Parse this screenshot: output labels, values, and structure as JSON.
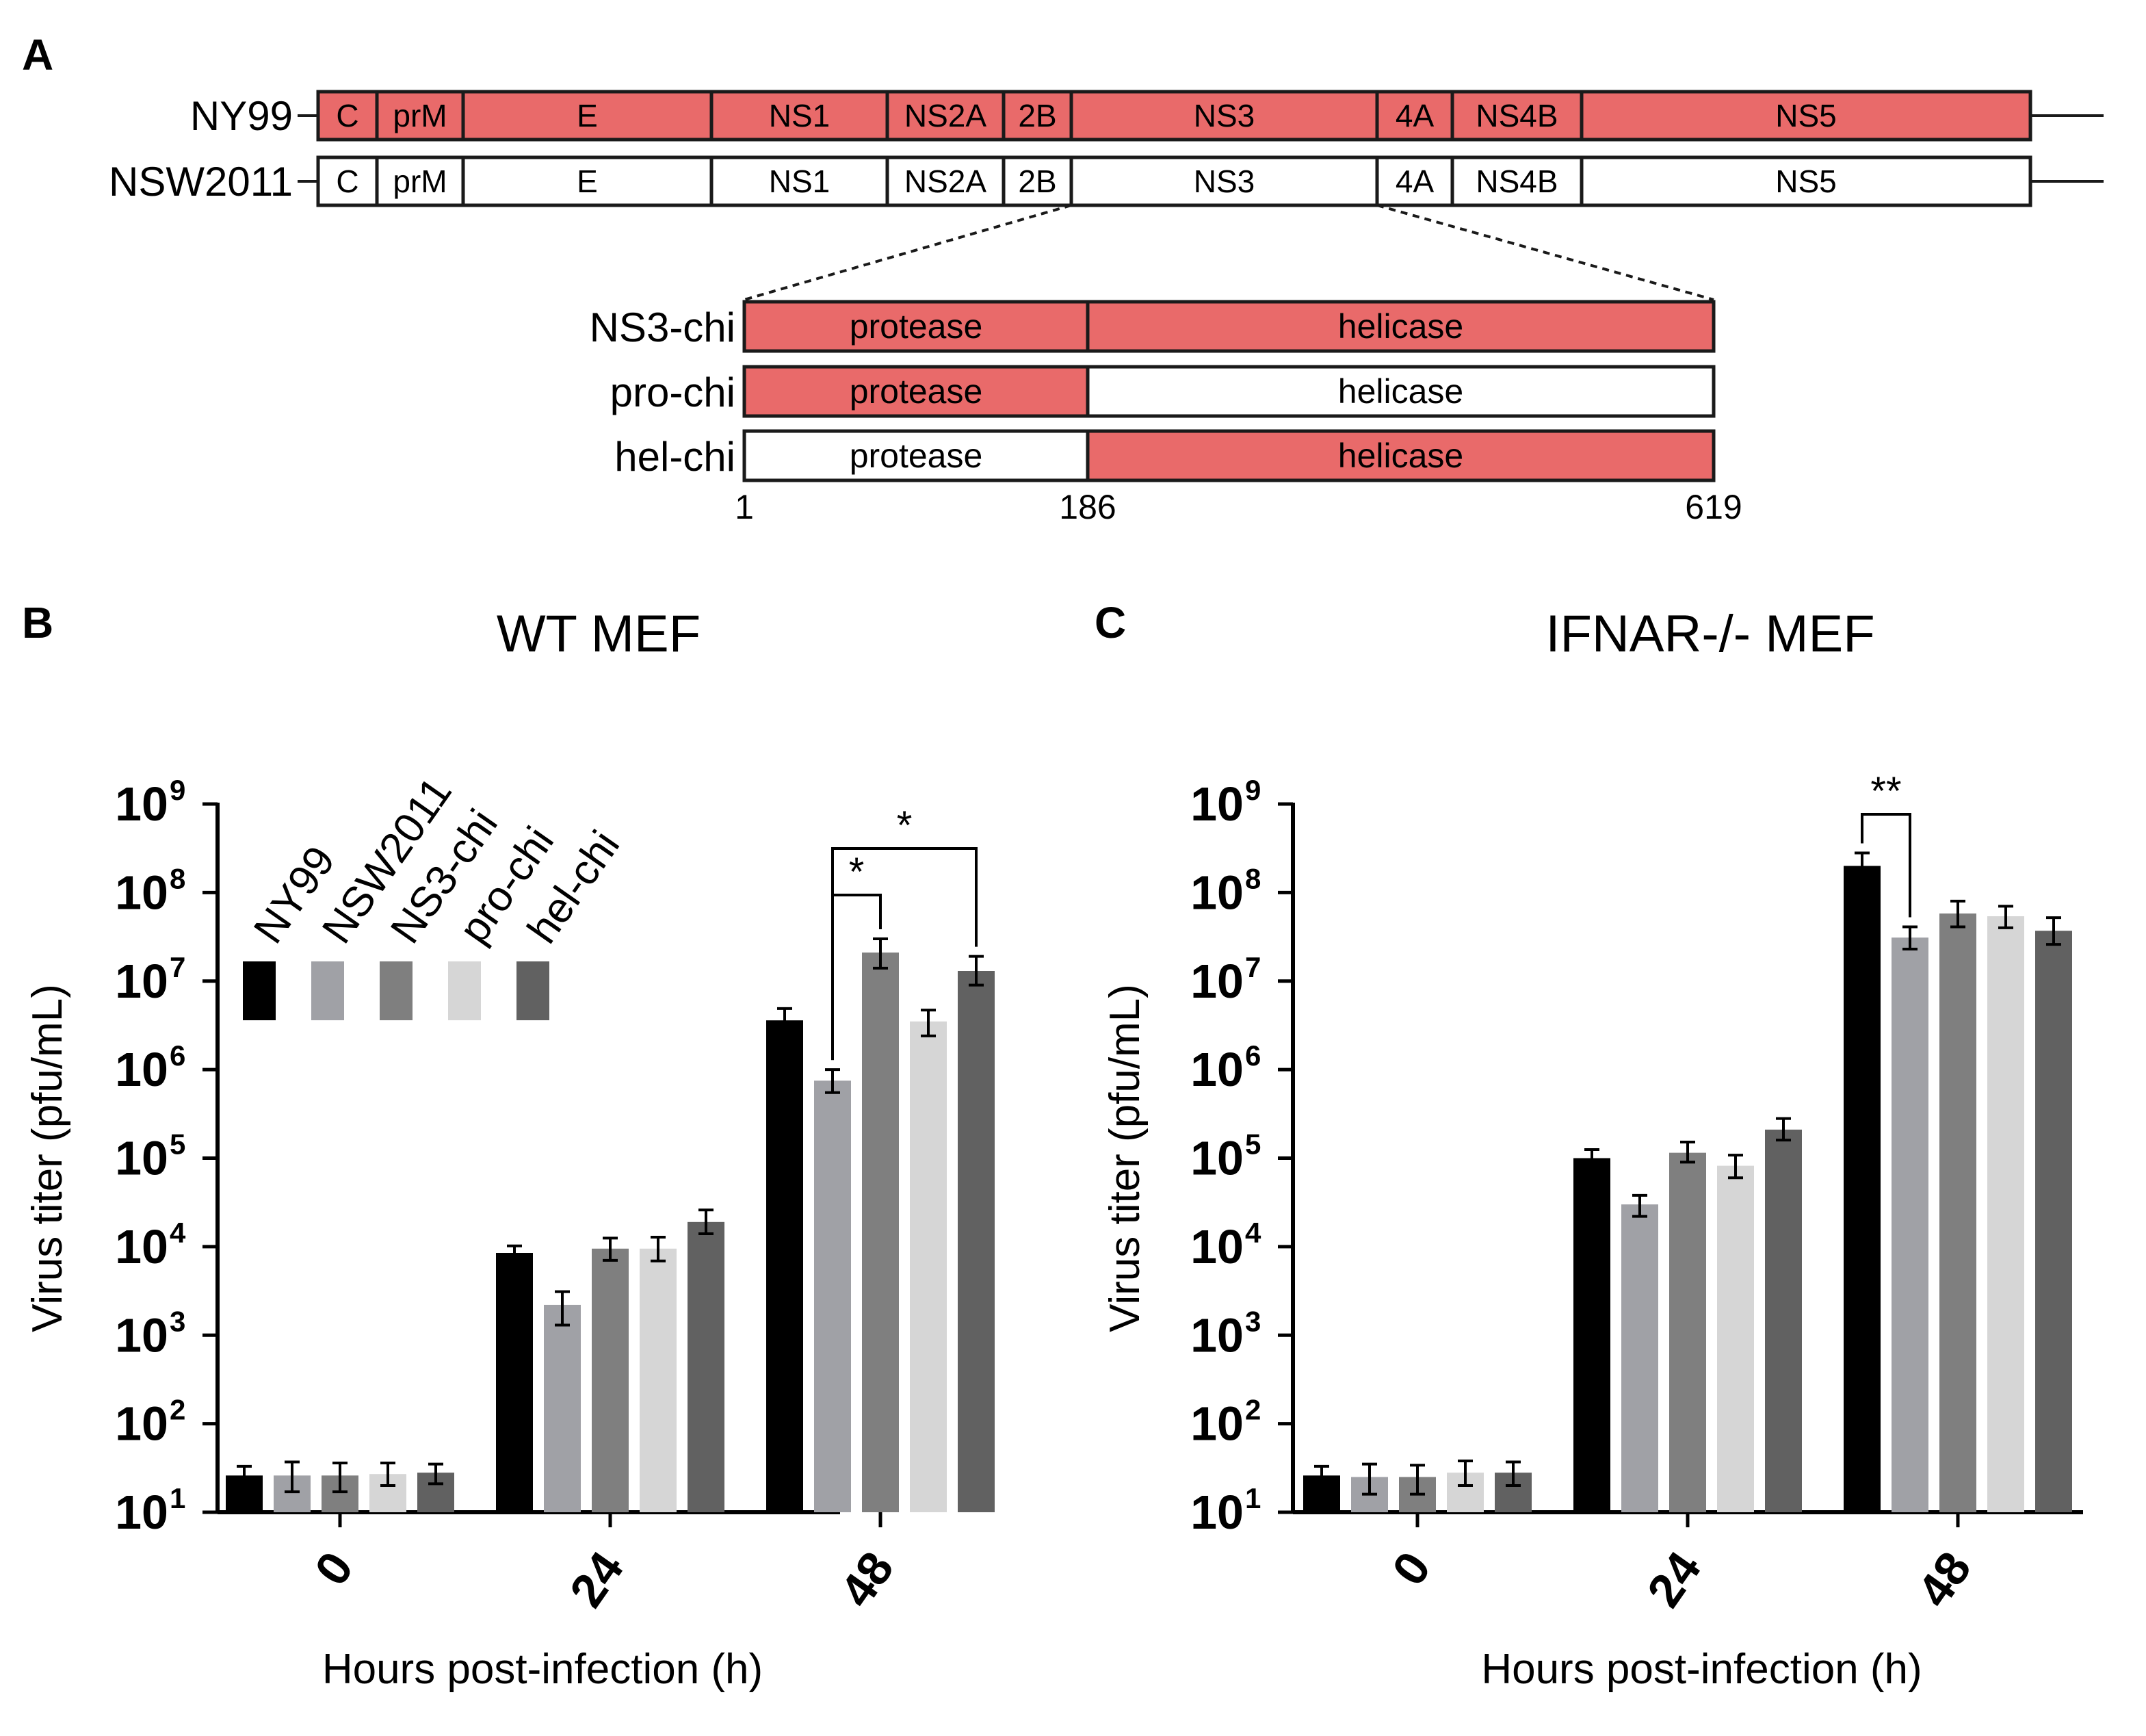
{
  "colors": {
    "ny99_fill": "#e96a6a",
    "nsw_fill": "#ffffff",
    "outline": "#1a1a1a"
  },
  "panel_a": {
    "letter": "A",
    "genomes": [
      {
        "name": "NY99",
        "filled": true
      },
      {
        "name": "NSW2011",
        "filled": false
      }
    ],
    "segments": [
      "C",
      "prM",
      "E",
      "NS1",
      "NS2A",
      "2B",
      "NS3",
      "4A",
      "NS4B",
      "NS5"
    ],
    "chimeras": [
      {
        "name": "NS3-chi",
        "protease_filled": true,
        "helicase_filled": true
      },
      {
        "name": "pro-chi",
        "protease_filled": true,
        "helicase_filled": false
      },
      {
        "name": "hel-chi",
        "protease_filled": false,
        "helicase_filled": true
      }
    ],
    "domain_labels": {
      "protease": "protease",
      "helicase": "helicase"
    },
    "positions": [
      "1",
      "186",
      "619"
    ]
  },
  "chart_data": [
    {
      "type": "bar",
      "panel": "B",
      "title": "WT MEF",
      "xlabel": "Hours post-infection (h)",
      "ylabel": "Virus titer (pfu/mL)",
      "yscale": "log10",
      "ylim": [
        10,
        1000000000
      ],
      "ytick_exponents": [
        1,
        2,
        3,
        4,
        5,
        6,
        7,
        8,
        9
      ],
      "categories": [
        "0",
        "24",
        "48"
      ],
      "series": [
        {
          "name": "NY99",
          "color": "#000000",
          "values": [
            26,
            8500,
            3600000
          ],
          "err_low": [
            20,
            7000,
            2700000
          ],
          "err_high": [
            33,
            10200,
            4900000
          ]
        },
        {
          "name": "NSW2011",
          "color": "#a0a1a6",
          "values": [
            26,
            2200,
            750000
          ],
          "err_low": [
            17,
            1300,
            550000
          ],
          "err_high": [
            37,
            3100,
            1000000
          ]
        },
        {
          "name": "NS3-chi",
          "color": "#7f7f7f",
          "values": [
            26,
            9500,
            21000000
          ],
          "err_low": [
            17,
            7000,
            14000000
          ],
          "err_high": [
            36,
            12500,
            30000000
          ]
        },
        {
          "name": "pro-chi",
          "color": "#d6d6d6",
          "values": [
            27,
            9500,
            3500000
          ],
          "err_low": [
            20,
            6900,
            2400000
          ],
          "err_high": [
            36,
            12800,
            4700000
          ]
        },
        {
          "name": "hel-chi",
          "color": "#616161",
          "values": [
            28,
            19000,
            13000000
          ],
          "err_low": [
            21,
            14000,
            9000000
          ],
          "err_high": [
            35,
            26000,
            19000000
          ]
        }
      ],
      "legend": [
        "NY99",
        "NSW2011",
        "NS3-chi",
        "pro-chi",
        "hel-chi"
      ],
      "significance": [
        {
          "category": "48",
          "from": "NSW2011",
          "to": "NS3-chi",
          "label": "*"
        },
        {
          "category": "48",
          "from": "NSW2011",
          "to": "hel-chi",
          "label": "*"
        }
      ]
    },
    {
      "type": "bar",
      "panel": "C",
      "title": "IFNAR-/- MEF",
      "xlabel": "Hours post-infection (h)",
      "ylabel": "Virus titer (pfu/mL)",
      "yscale": "log10",
      "ylim": [
        10,
        1000000000
      ],
      "ytick_exponents": [
        1,
        2,
        3,
        4,
        5,
        6,
        7,
        8,
        9
      ],
      "categories": [
        "0",
        "24",
        "48"
      ],
      "series": [
        {
          "name": "NY99",
          "color": "#000000",
          "values": [
            26,
            100000,
            200000000
          ],
          "err_low": [
            20,
            85000,
            160000000
          ],
          "err_high": [
            33,
            125000,
            280000000
          ]
        },
        {
          "name": "NSW2011",
          "color": "#a0a1a6",
          "values": [
            25,
            30000,
            31000000
          ],
          "err_low": [
            16,
            22000,
            23000000
          ],
          "err_high": [
            35,
            38000,
            41000000
          ]
        },
        {
          "name": "NS3-chi",
          "color": "#7f7f7f",
          "values": [
            25,
            115000,
            58000000
          ],
          "err_low": [
            16,
            90000,
            41000000
          ],
          "err_high": [
            34,
            152000,
            80000000
          ]
        },
        {
          "name": "pro-chi",
          "color": "#d6d6d6",
          "values": [
            28,
            82000,
            54000000
          ],
          "err_low": [
            20,
            60000,
            40000000
          ],
          "err_high": [
            38,
            108000,
            70000000
          ]
        },
        {
          "name": "hel-chi",
          "color": "#616161",
          "values": [
            28,
            210000,
            37000000
          ],
          "err_low": [
            20,
            160000,
            26000000
          ],
          "err_high": [
            37,
            280000,
            52000000
          ]
        }
      ],
      "significance": [
        {
          "category": "48",
          "from": "NY99",
          "to": "NSW2011",
          "label": "**"
        }
      ]
    }
  ]
}
